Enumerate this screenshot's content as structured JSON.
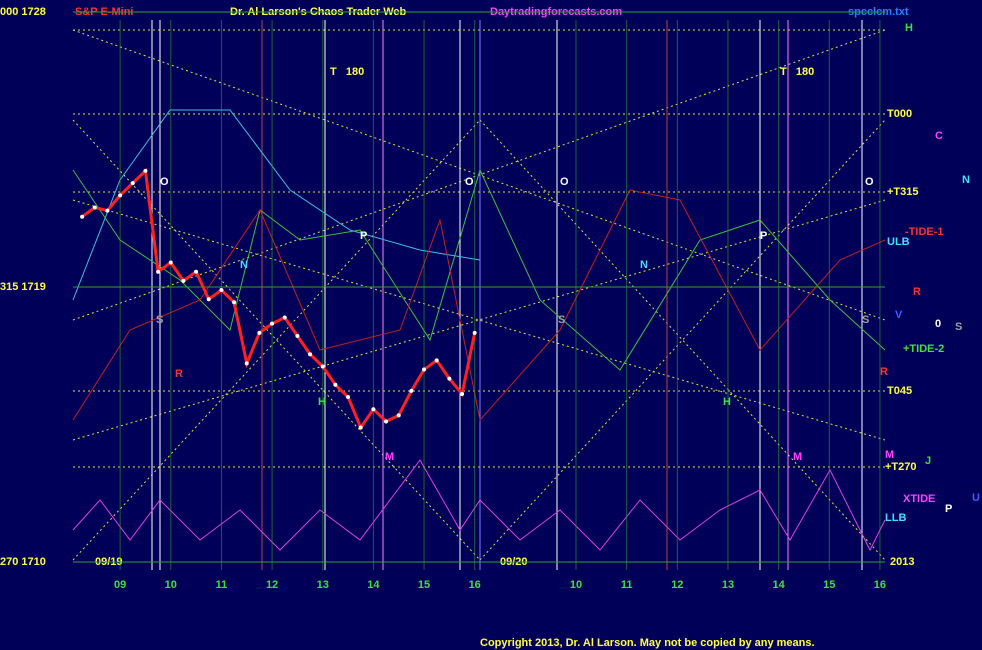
{
  "chart_data": {
    "type": "line",
    "title": "Dr. Al Larson's Chaos Trader Web",
    "instrument": "S&P E-Mini",
    "website": "Daytradingforecasts.com",
    "file": "spcclcm.txt",
    "copyright": "Copyright 2013, Dr. Al Larson. May not be copied by any means.",
    "dates": [
      "09/19",
      "09/20"
    ],
    "year": "2013",
    "color": "#ff2020",
    "x": [
      8.25,
      8.5,
      8.75,
      9,
      9.25,
      9.5,
      9.75,
      10,
      10.25,
      10.5,
      10.75,
      11,
      11.25,
      11.5,
      11.75,
      12,
      12.25,
      12.5,
      12.75,
      13,
      13.25,
      13.5,
      13.75,
      14,
      14.25,
      14.5,
      14.75,
      15,
      15.25,
      15.5,
      15.75,
      16
    ],
    "values": [
      1721.3,
      1721.6,
      1721.5,
      1722.0,
      1722.4,
      1722.8,
      1719.5,
      1719.8,
      1719.2,
      1719.5,
      1718.6,
      1718.9,
      1718.5,
      1716.5,
      1717.5,
      1717.8,
      1718.0,
      1717.4,
      1716.8,
      1716.4,
      1715.8,
      1715.4,
      1714.4,
      1715.0,
      1714.6,
      1714.8,
      1715.6,
      1716.3,
      1716.6,
      1716.0,
      1715.5,
      1717.5
    ],
    "xlim": [
      8.07,
      24.1
    ],
    "xticks": [
      {
        "value": 9,
        "label": "09"
      },
      10,
      11,
      12,
      13,
      14,
      15,
      16,
      {
        "value": 18,
        "label": "10"
      },
      {
        "value": 19,
        "label": "11"
      },
      {
        "value": 20,
        "label": "12"
      },
      {
        "value": 21,
        "label": "13"
      },
      {
        "value": 22,
        "label": "14"
      },
      {
        "value": 23,
        "label": "15"
      },
      {
        "value": 24,
        "label": "16"
      }
    ],
    "ylim": [
      1710,
      1728
    ],
    "yticks": [
      {
        "value": 1728,
        "label": "000 1728"
      },
      {
        "value": 1719,
        "label": "315 1719"
      },
      {
        "value": 1710,
        "label": "270 1710"
      }
    ],
    "grid": true,
    "right_labels": [
      "H",
      "T000",
      "C",
      "+T315",
      "N",
      "-TIDE-1",
      "ULB",
      "R",
      "V",
      "0",
      "S",
      "+TIDE-2",
      "R",
      "T045",
      "M",
      "+T270",
      "J",
      "XTIDE",
      "U",
      "P",
      "LLB"
    ],
    "annotations": [
      "T   180",
      "T   180",
      "O",
      "O",
      "O",
      "O",
      "N",
      "N",
      "P",
      "P",
      "R",
      "H",
      "H",
      "M",
      "M",
      "S",
      "S",
      "S"
    ]
  }
}
